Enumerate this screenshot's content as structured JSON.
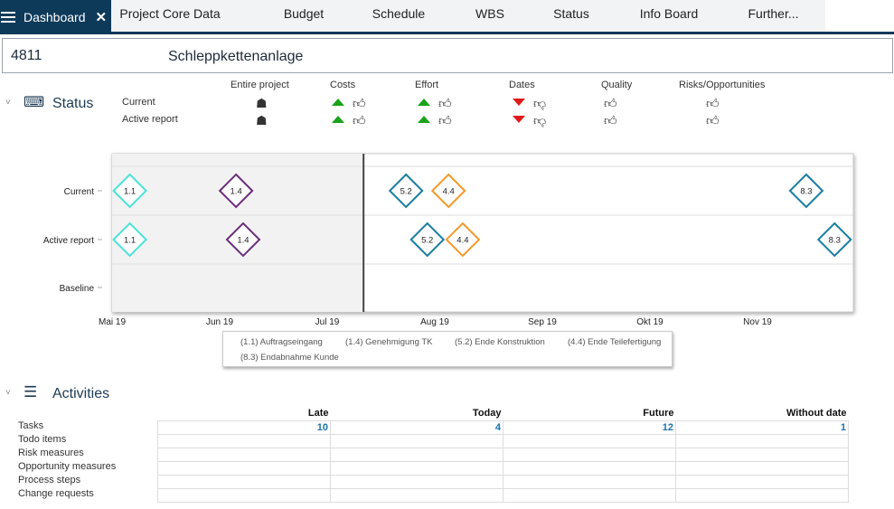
{
  "tabs": {
    "active": "Dashboard",
    "items": [
      "Project Core Data",
      "Budget",
      "Schedule",
      "WBS",
      "Status",
      "Info Board",
      "Further..."
    ]
  },
  "project": {
    "number": "4811",
    "name": "Schleppkettenanlage"
  },
  "status": {
    "title": "Status",
    "rows": [
      "Current",
      "Active report"
    ],
    "columns": [
      {
        "label": "Entire project",
        "trend": [
          null,
          null
        ],
        "icon": "chef-hat-icon"
      },
      {
        "label": "Costs",
        "trend": [
          "up",
          "up"
        ],
        "icon": "thumbs-up-icon"
      },
      {
        "label": "Effort",
        "trend": [
          "up",
          "up"
        ],
        "icon": "thumbs-up-icon"
      },
      {
        "label": "Dates",
        "trend": [
          "down",
          "down"
        ],
        "icon": "thumbs-down-icon"
      },
      {
        "label": "Quality",
        "trend": [
          null,
          null
        ],
        "icon": "thumbs-up-icon"
      },
      {
        "label": "Risks/Opportunities",
        "trend": [
          null,
          null
        ],
        "icon": "thumbs-up-icon"
      }
    ],
    "colors": {
      "up": "#19a319",
      "down": "#e01a1a"
    }
  },
  "chart_data": {
    "type": "scatter",
    "subtype": "milestone-timeline",
    "categories": [
      "Current",
      "Active report",
      "Baseline"
    ],
    "x_ticks": [
      "Mai 19",
      "Jun 19",
      "Jul 19",
      "Aug 19",
      "Sep 19",
      "Okt 19",
      "Nov 19"
    ],
    "xlim": [
      "2019-05-01",
      "2019-12-31"
    ],
    "today": "2019-07-11",
    "milestones": [
      {
        "id": "1.1",
        "name": "Auftragseingang",
        "color": "#4de3d9",
        "current": "2019-05-06",
        "active": "2019-05-06"
      },
      {
        "id": "1.4",
        "name": "Genehmigung TK",
        "color": "#6b2e7b",
        "current": "2019-06-05",
        "active": "2019-06-07"
      },
      {
        "id": "5.2",
        "name": "Ende Konstruktion",
        "color": "#1b7ea1",
        "current": "2019-07-23",
        "active": "2019-07-29"
      },
      {
        "id": "4.4",
        "name": "Ende Teilefertigung",
        "color": "#f39a2a",
        "current": "2019-08-04",
        "active": "2019-08-08"
      },
      {
        "id": "8.3",
        "name": "Endabnahme Kunde",
        "color": "#1b7ea1",
        "current": "2019-11-13",
        "active": "2019-11-21"
      }
    ],
    "legend": [
      "(1.1) Auftragseingang",
      "(1.4) Genehmigung TK",
      "(5.2) Ende Konstruktion",
      "(4.4) Ende Teilefertigung",
      "(8.3) Endabnahme Kunde"
    ],
    "grid": true,
    "legend_placement": "bottom"
  },
  "activities": {
    "title": "Activities",
    "columns": [
      "Late",
      "Today",
      "Future",
      "Without date"
    ],
    "rows": [
      {
        "label": "Tasks",
        "values": [
          "10",
          "4",
          "12",
          "1"
        ]
      },
      {
        "label": "Todo items",
        "values": [
          "",
          "",
          "",
          ""
        ]
      },
      {
        "label": "Risk measures",
        "values": [
          "",
          "",
          "",
          ""
        ]
      },
      {
        "label": "Opportunity measures",
        "values": [
          "",
          "",
          "",
          ""
        ]
      },
      {
        "label": "Process steps",
        "values": [
          "",
          "",
          "",
          ""
        ]
      },
      {
        "label": "Change requests",
        "values": [
          "",
          "",
          "",
          ""
        ]
      }
    ]
  }
}
